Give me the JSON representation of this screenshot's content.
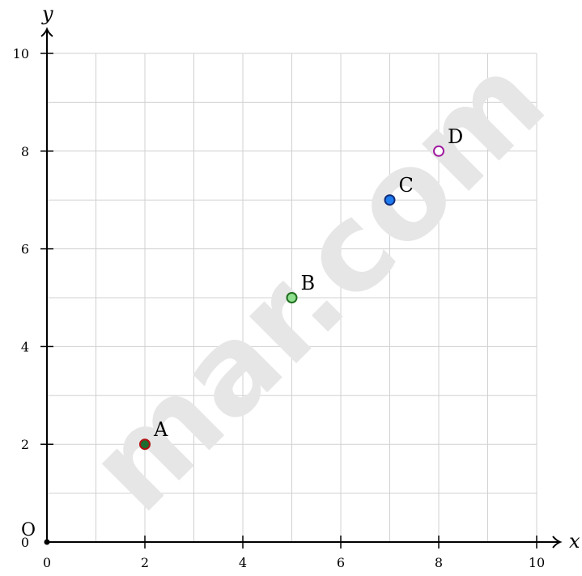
{
  "chart_data": {
    "type": "scatter",
    "xlabel": "x",
    "ylabel": "y",
    "xlim": [
      0,
      10
    ],
    "ylim": [
      0,
      10
    ],
    "grid": true,
    "x_ticks": [
      0,
      2,
      4,
      6,
      8,
      10
    ],
    "y_ticks": [
      0,
      2,
      4,
      6,
      8,
      10
    ],
    "origin_label": "O",
    "points": [
      {
        "label": "A",
        "x": 2,
        "y": 2,
        "fill": "#1e6b2e",
        "stroke": "#b01010"
      },
      {
        "label": "B",
        "x": 5,
        "y": 5,
        "fill": "#8ee08e",
        "stroke": "#1f6e1f"
      },
      {
        "label": "C",
        "x": 7,
        "y": 7,
        "fill": "#1e7cf0",
        "stroke": "#102b78"
      },
      {
        "label": "D",
        "x": 8,
        "y": 8,
        "fill": "#ffffff",
        "stroke": "#a01aa0"
      }
    ]
  },
  "watermark": {
    "text": "mar.com"
  }
}
